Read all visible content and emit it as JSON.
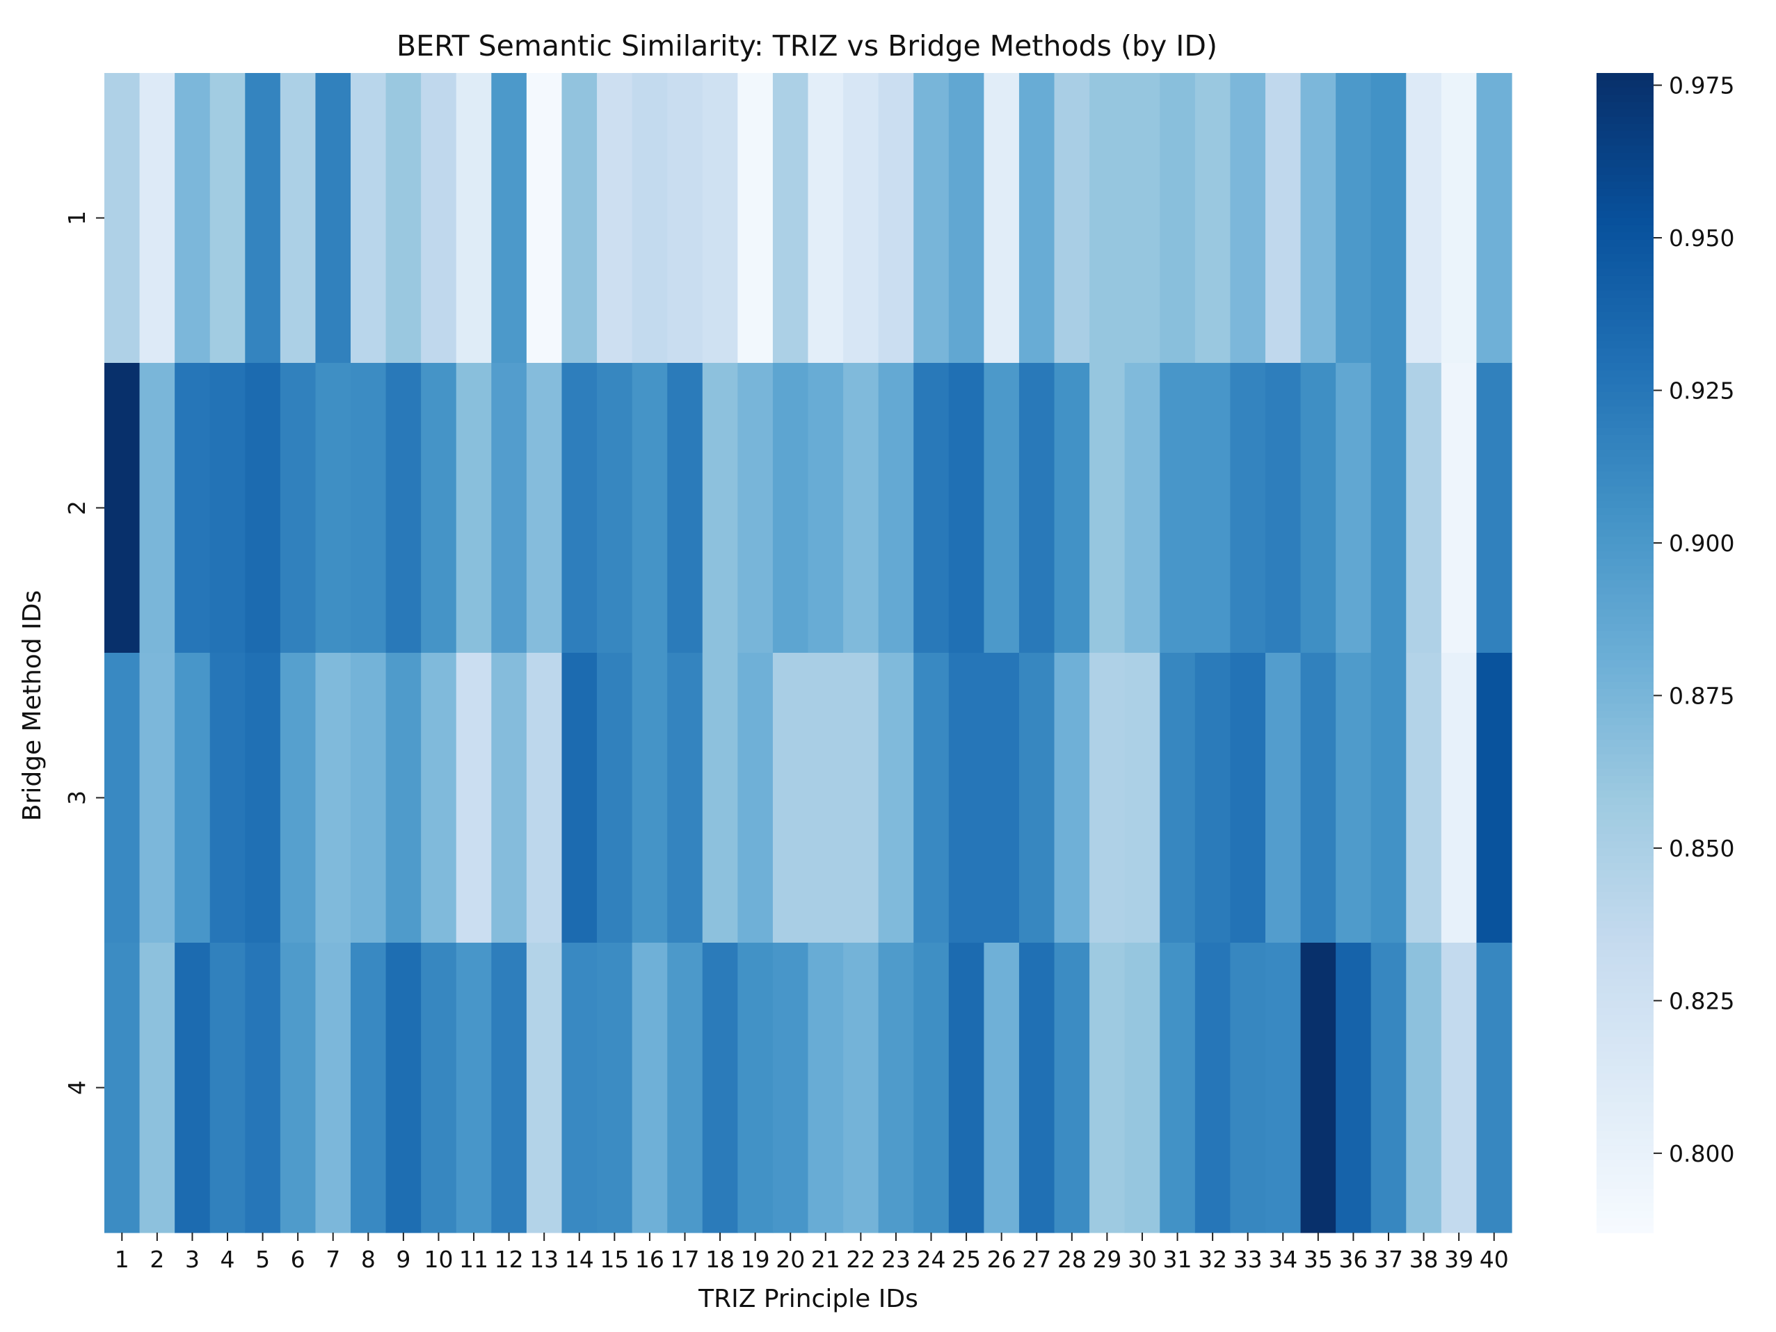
{
  "chart_data": {
    "type": "heatmap",
    "title": "BERT Semantic Similarity: TRIZ vs Bridge Methods (by ID)",
    "xlabel": "TRIZ Principle IDs",
    "ylabel": "Bridge Method IDs",
    "x_categories": [
      "1",
      "2",
      "3",
      "4",
      "5",
      "6",
      "7",
      "8",
      "9",
      "10",
      "11",
      "12",
      "13",
      "14",
      "15",
      "16",
      "17",
      "18",
      "19",
      "20",
      "21",
      "22",
      "23",
      "24",
      "25",
      "26",
      "27",
      "28",
      "29",
      "30",
      "31",
      "32",
      "33",
      "34",
      "35",
      "36",
      "37",
      "38",
      "39",
      "40"
    ],
    "y_categories": [
      "1",
      "2",
      "3",
      "4"
    ],
    "colormap": "Blues",
    "color_range": [
      0.787,
      0.977
    ],
    "colorbar_ticks": [
      "0.800",
      "0.825",
      "0.850",
      "0.875",
      "0.900",
      "0.925",
      "0.950",
      "0.975"
    ],
    "values": [
      [
        0.848,
        0.812,
        0.874,
        0.856,
        0.916,
        0.85,
        0.918,
        0.842,
        0.86,
        0.838,
        0.81,
        0.9,
        0.79,
        0.864,
        0.828,
        0.836,
        0.832,
        0.826,
        0.792,
        0.85,
        0.806,
        0.818,
        0.83,
        0.876,
        0.888,
        0.808,
        0.884,
        0.852,
        0.862,
        0.862,
        0.868,
        0.86,
        0.874,
        0.838,
        0.874,
        0.9,
        0.906,
        0.812,
        0.798,
        0.88
      ],
      [
        0.977,
        0.875,
        0.926,
        0.928,
        0.934,
        0.918,
        0.908,
        0.91,
        0.924,
        0.904,
        0.868,
        0.896,
        0.87,
        0.92,
        0.914,
        0.904,
        0.922,
        0.866,
        0.876,
        0.89,
        0.884,
        0.872,
        0.886,
        0.924,
        0.93,
        0.9,
        0.924,
        0.906,
        0.862,
        0.872,
        0.902,
        0.902,
        0.916,
        0.92,
        0.908,
        0.888,
        0.906,
        0.848,
        0.796,
        0.918
      ],
      [
        0.912,
        0.874,
        0.902,
        0.926,
        0.93,
        0.894,
        0.872,
        0.878,
        0.898,
        0.872,
        0.83,
        0.87,
        0.84,
        0.934,
        0.918,
        0.904,
        0.916,
        0.866,
        0.88,
        0.852,
        0.852,
        0.852,
        0.872,
        0.912,
        0.926,
        0.926,
        0.914,
        0.88,
        0.848,
        0.85,
        0.914,
        0.922,
        0.928,
        0.896,
        0.918,
        0.898,
        0.906,
        0.846,
        0.802,
        0.952
      ],
      [
        0.91,
        0.866,
        0.934,
        0.918,
        0.926,
        0.898,
        0.874,
        0.912,
        0.932,
        0.914,
        0.902,
        0.92,
        0.846,
        0.912,
        0.91,
        0.88,
        0.9,
        0.922,
        0.906,
        0.902,
        0.884,
        0.878,
        0.898,
        0.908,
        0.934,
        0.88,
        0.93,
        0.91,
        0.858,
        0.862,
        0.906,
        0.926,
        0.914,
        0.912,
        0.977,
        0.94,
        0.914,
        0.866,
        0.836,
        0.914
      ]
    ]
  }
}
